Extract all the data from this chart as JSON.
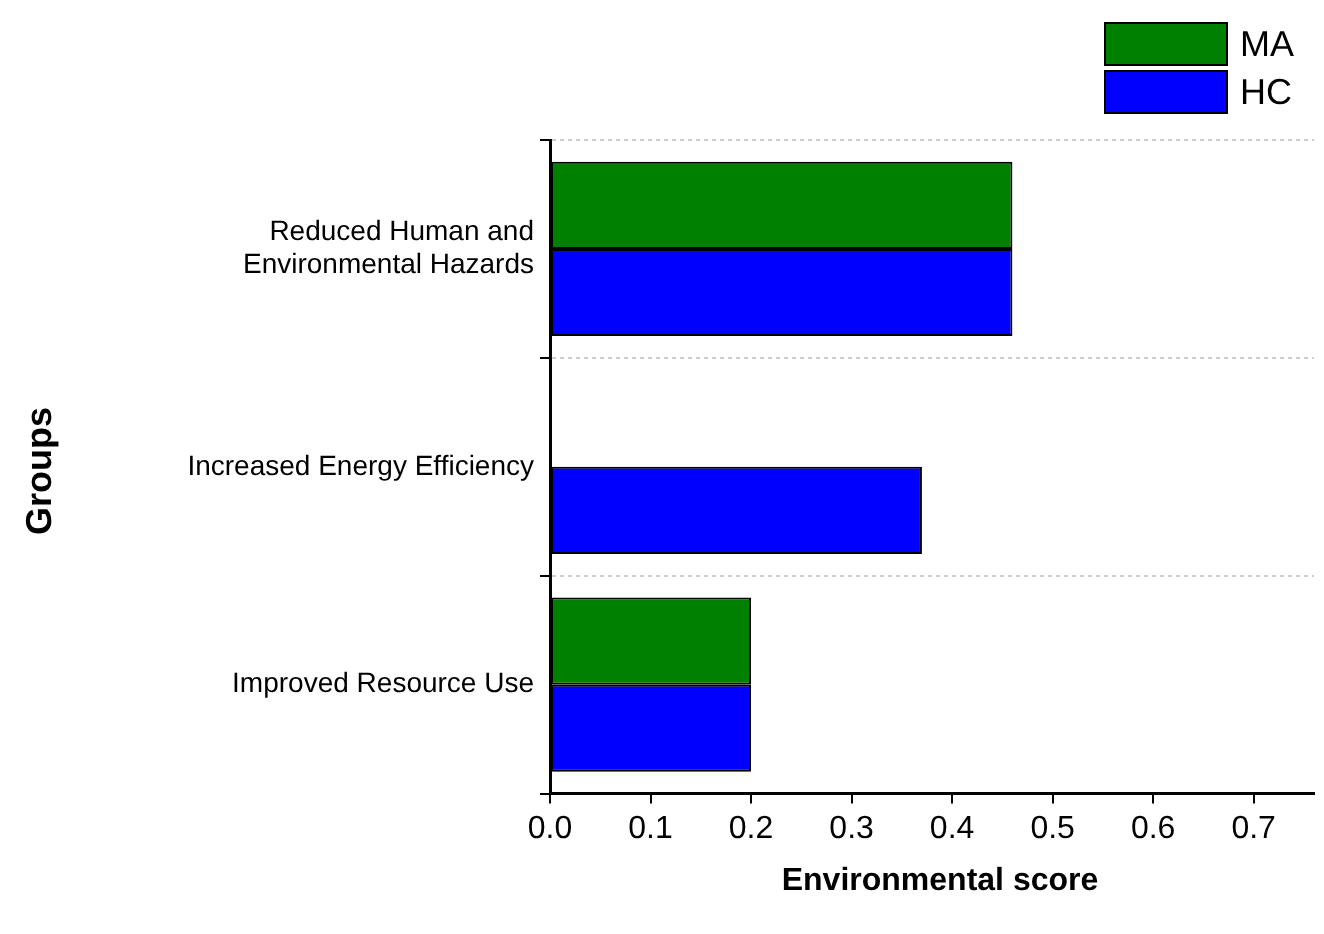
{
  "chart_data": {
    "type": "bar",
    "orientation": "horizontal",
    "xlabel": "Environmental score",
    "ylabel": "Groups",
    "categories": [
      "Reduced Human and Environmental Hazards",
      "Increased Energy Efficiency",
      "Improved Resource Use"
    ],
    "series": [
      {
        "name": "MA",
        "color": "#008000",
        "values": [
          0.46,
          null,
          0.2
        ]
      },
      {
        "name": "HC",
        "color": "#0000ff",
        "values": [
          0.46,
          0.37,
          0.2
        ]
      }
    ],
    "xlim": [
      0,
      0.76
    ],
    "xticks": [
      {
        "value": 0,
        "label": "0.0"
      },
      0.1,
      0.2,
      0.3,
      0.4,
      0.5,
      0.6,
      0.7
    ],
    "grid": "y",
    "legend": "top right"
  }
}
